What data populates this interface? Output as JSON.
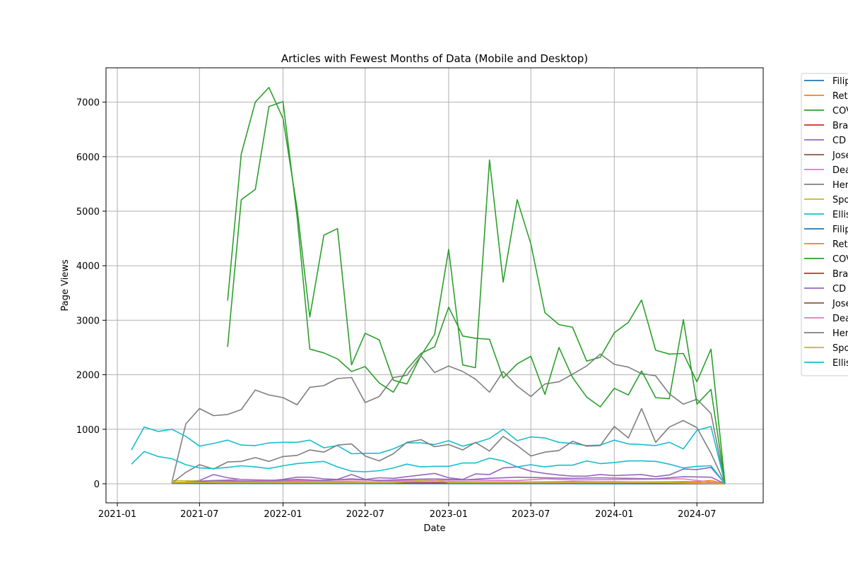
{
  "chart_data": {
    "type": "line",
    "title": "Articles with Fewest Months of Data (Mobile and Desktop)",
    "xlabel": "Date",
    "ylabel": "Page Views",
    "xlim": [
      "2020-12-07",
      "2024-11-24"
    ],
    "ylim": [
      -350,
      7630
    ],
    "x_ticks": [
      "2021-01",
      "2021-07",
      "2022-01",
      "2022-07",
      "2023-01",
      "2023-07",
      "2024-01",
      "2024-07"
    ],
    "y_ticks": [
      0,
      1000,
      2000,
      3000,
      4000,
      5000,
      6000,
      7000
    ],
    "grid": true,
    "legend_position": "outside-right",
    "series": [
      {
        "name": "Filip",
        "color": "#1f77b4",
        "x": [
          "2021-05",
          "2024-09"
        ],
        "y": [
          15,
          0
        ]
      },
      {
        "name": "Ret",
        "color": "#ff7f0e",
        "x": [
          "2021-05",
          "2021-09",
          "2022-01",
          "2022-07",
          "2023-01",
          "2023-07",
          "2024-01",
          "2024-07",
          "2024-08",
          "2024-09"
        ],
        "y": [
          25,
          30,
          40,
          30,
          30,
          25,
          30,
          40,
          60,
          0
        ]
      },
      {
        "name": "COV",
        "color": "#2ca02c",
        "x": [
          "2021-09",
          "2021-10",
          "2021-11",
          "2021-12",
          "2022-01",
          "2022-02",
          "2022-03",
          "2022-04",
          "2022-05",
          "2022-06",
          "2022-07",
          "2022-08",
          "2022-09",
          "2022-10",
          "2022-11",
          "2022-12",
          "2023-01",
          "2023-02",
          "2023-03",
          "2023-04",
          "2023-05",
          "2023-06",
          "2023-07",
          "2023-08",
          "2023-09",
          "2023-10",
          "2023-11",
          "2023-12",
          "2024-01",
          "2024-02",
          "2024-03",
          "2024-04",
          "2024-05",
          "2024-06",
          "2024-07",
          "2024-08",
          "2024-09"
        ],
        "y": [
          3360,
          6050,
          7000,
          7270,
          6700,
          5050,
          3060,
          4560,
          4680,
          2180,
          2760,
          2640,
          1900,
          1830,
          2350,
          2740,
          4300,
          2180,
          2130,
          5940,
          3700,
          5210,
          4400,
          3140,
          2920,
          2870,
          2250,
          2320,
          2770,
          2960,
          3370,
          2450,
          2380,
          2390,
          1870,
          2470,
          0
        ]
      },
      {
        "name": "Bra",
        "color": "#d62728",
        "x": [
          "2021-06",
          "2021-09",
          "2022-01",
          "2022-05",
          "2022-09",
          "2023-01",
          "2023-05",
          "2023-09",
          "2024-01",
          "2024-05",
          "2024-08"
        ],
        "y": [
          30,
          40,
          30,
          40,
          30,
          30,
          25,
          20,
          25,
          15,
          10
        ]
      },
      {
        "name": "CD",
        "color": "#9467bd",
        "x": [
          "2021-06",
          "2021-07",
          "2021-08",
          "2021-09",
          "2021-10",
          "2021-11",
          "2021-12",
          "2022-01",
          "2022-02",
          "2022-03",
          "2022-04",
          "2022-05",
          "2022-06",
          "2022-07",
          "2022-08",
          "2022-09",
          "2022-10",
          "2022-11",
          "2022-12",
          "2023-01",
          "2023-02",
          "2023-03",
          "2023-04",
          "2023-05",
          "2023-06",
          "2023-07",
          "2023-08",
          "2023-09",
          "2023-10",
          "2023-11",
          "2023-12",
          "2024-01",
          "2024-02",
          "2024-03",
          "2024-04",
          "2024-05",
          "2024-06",
          "2024-07",
          "2024-08",
          "2024-09"
        ],
        "y": [
          40,
          60,
          170,
          110,
          80,
          70,
          60,
          80,
          120,
          120,
          90,
          80,
          170,
          80,
          110,
          100,
          130,
          160,
          190,
          110,
          80,
          180,
          170,
          290,
          310,
          230,
          190,
          160,
          140,
          140,
          170,
          150,
          160,
          170,
          130,
          160,
          270,
          260,
          300,
          0
        ]
      },
      {
        "name": "Jose",
        "color": "#8c564b",
        "x": [
          "2021-06",
          "2021-10",
          "2022-02",
          "2022-06",
          "2022-10",
          "2023-02",
          "2023-06",
          "2023-10",
          "2024-02",
          "2024-06",
          "2024-09"
        ],
        "y": [
          20,
          30,
          40,
          30,
          40,
          30,
          30,
          40,
          30,
          30,
          0
        ]
      },
      {
        "name": "Dea",
        "color": "#e377c2",
        "x": [
          "2021-06",
          "2021-10",
          "2022-02",
          "2022-06",
          "2022-10",
          "2023-02",
          "2023-06",
          "2023-08",
          "2023-10",
          "2024-02",
          "2024-06",
          "2024-09"
        ],
        "y": [
          40,
          80,
          60,
          70,
          60,
          70,
          60,
          90,
          70,
          80,
          90,
          0
        ]
      },
      {
        "name": "Her",
        "color": "#7f7f7f",
        "x": [
          "2021-05",
          "2021-06",
          "2021-07",
          "2021-08",
          "2021-09",
          "2021-10",
          "2021-11",
          "2021-12",
          "2022-01",
          "2022-02",
          "2022-03",
          "2022-04",
          "2022-05",
          "2022-06",
          "2022-07",
          "2022-08",
          "2022-09",
          "2022-10",
          "2022-11",
          "2022-12",
          "2023-01",
          "2023-02",
          "2023-03",
          "2023-04",
          "2023-05",
          "2023-06",
          "2023-07",
          "2023-08",
          "2023-09",
          "2023-10",
          "2023-11",
          "2023-12",
          "2024-01",
          "2024-02",
          "2024-03",
          "2024-04",
          "2024-05",
          "2024-06",
          "2024-07",
          "2024-08",
          "2024-09"
        ],
        "y": [
          20,
          1100,
          1380,
          1250,
          1270,
          1360,
          1720,
          1630,
          1580,
          1450,
          1770,
          1800,
          1930,
          1950,
          1490,
          1600,
          1950,
          1990,
          2350,
          2040,
          2160,
          2060,
          1920,
          1680,
          2060,
          1790,
          1600,
          1830,
          1870,
          2010,
          2160,
          2380,
          2190,
          2140,
          2020,
          1980,
          1650,
          1460,
          1550,
          1290,
          0
        ]
      },
      {
        "name": "Spo",
        "color": "#bcbd22",
        "x": [
          "2021-05",
          "2021-09",
          "2022-01",
          "2022-05",
          "2022-09",
          "2023-01",
          "2023-05",
          "2023-09",
          "2024-01",
          "2024-05",
          "2024-09"
        ],
        "y": [
          60,
          40,
          30,
          40,
          30,
          20,
          30,
          30,
          30,
          30,
          0
        ]
      },
      {
        "name": "Ellis",
        "color": "#17becf",
        "x": [
          "2021-02",
          "2021-03",
          "2021-04",
          "2021-05",
          "2021-06",
          "2021-07",
          "2021-08",
          "2021-09",
          "2021-10",
          "2021-11",
          "2021-12",
          "2022-01",
          "2022-02",
          "2022-03",
          "2022-04",
          "2022-05",
          "2022-06",
          "2022-07",
          "2022-08",
          "2022-09",
          "2022-10",
          "2022-11",
          "2022-12",
          "2023-01",
          "2023-02",
          "2023-03",
          "2023-04",
          "2023-05",
          "2023-06",
          "2023-07",
          "2023-08",
          "2023-09",
          "2023-10",
          "2023-11",
          "2023-12",
          "2024-01",
          "2024-02",
          "2024-03",
          "2024-04",
          "2024-05",
          "2024-06",
          "2024-07",
          "2024-08",
          "2024-09"
        ],
        "y": [
          620,
          1040,
          960,
          1000,
          870,
          690,
          740,
          800,
          710,
          700,
          750,
          760,
          760,
          800,
          660,
          700,
          550,
          560,
          560,
          640,
          750,
          750,
          720,
          790,
          690,
          750,
          830,
          1000,
          790,
          860,
          840,
          760,
          740,
          700,
          710,
          800,
          730,
          720,
          700,
          760,
          640,
          980,
          1050,
          0
        ]
      },
      {
        "name": "Filip",
        "color": "#1f77b4",
        "x": [
          "2021-05",
          "2024-09"
        ],
        "y": [
          5,
          0
        ]
      },
      {
        "name": "Ret",
        "color": "#ff7f0e",
        "x": [
          "2021-05",
          "2021-09",
          "2022-01",
          "2022-07",
          "2023-01",
          "2023-07",
          "2024-01",
          "2024-07",
          "2024-09"
        ],
        "y": [
          15,
          20,
          25,
          20,
          20,
          15,
          20,
          25,
          0
        ]
      },
      {
        "name": "COV",
        "color": "#2ca02c",
        "x": [
          "2021-09",
          "2021-10",
          "2021-11",
          "2021-12",
          "2022-01",
          "2022-02",
          "2022-03",
          "2022-04",
          "2022-05",
          "2022-06",
          "2022-07",
          "2022-08",
          "2022-09",
          "2022-10",
          "2022-11",
          "2022-12",
          "2023-01",
          "2023-02",
          "2023-03",
          "2023-04",
          "2023-05",
          "2023-06",
          "2023-07",
          "2023-08",
          "2023-09",
          "2023-10",
          "2023-11",
          "2023-12",
          "2024-01",
          "2024-02",
          "2024-03",
          "2024-04",
          "2024-05",
          "2024-06",
          "2024-07",
          "2024-08",
          "2024-09"
        ],
        "y": [
          2510,
          5210,
          5400,
          6920,
          7010,
          4900,
          2470,
          2400,
          2290,
          2060,
          2150,
          1850,
          1680,
          2100,
          2390,
          2510,
          3240,
          2710,
          2670,
          2650,
          1940,
          2200,
          2340,
          1640,
          2500,
          1950,
          1590,
          1410,
          1750,
          1630,
          2070,
          1580,
          1560,
          3010,
          1460,
          1730,
          0
        ]
      },
      {
        "name": "Bra",
        "color": "#d62728",
        "x": [
          "2021-06",
          "2021-10",
          "2022-02",
          "2022-06",
          "2022-10",
          "2023-02",
          "2023-06",
          "2023-10",
          "2024-02",
          "2024-06",
          "2024-08"
        ],
        "y": [
          10,
          20,
          15,
          20,
          15,
          15,
          10,
          10,
          10,
          5,
          5
        ]
      },
      {
        "name": "CD",
        "color": "#9467bd",
        "x": [
          "2021-06",
          "2021-08",
          "2021-10",
          "2021-12",
          "2022-02",
          "2022-04",
          "2022-06",
          "2022-08",
          "2022-10",
          "2022-12",
          "2023-02",
          "2023-04",
          "2023-06",
          "2023-08",
          "2023-10",
          "2023-12",
          "2024-02",
          "2024-04",
          "2024-06",
          "2024-08",
          "2024-09"
        ],
        "y": [
          30,
          60,
          50,
          50,
          80,
          60,
          90,
          60,
          80,
          90,
          70,
          100,
          120,
          110,
          100,
          110,
          100,
          90,
          130,
          120,
          0
        ]
      },
      {
        "name": "Jose",
        "color": "#8c564b",
        "x": [
          "2021-06",
          "2022-01",
          "2022-07",
          "2023-01",
          "2023-07",
          "2024-01",
          "2024-09"
        ],
        "y": [
          10,
          20,
          15,
          20,
          15,
          20,
          0
        ]
      },
      {
        "name": "Dea",
        "color": "#e377c2",
        "x": [
          "2021-06",
          "2022-01",
          "2022-07",
          "2023-01",
          "2023-07",
          "2024-01",
          "2024-09"
        ],
        "y": [
          20,
          40,
          30,
          40,
          30,
          40,
          0
        ]
      },
      {
        "name": "Her",
        "color": "#7f7f7f",
        "x": [
          "2021-05",
          "2021-06",
          "2021-07",
          "2021-08",
          "2021-09",
          "2021-10",
          "2021-11",
          "2021-12",
          "2022-01",
          "2022-02",
          "2022-03",
          "2022-04",
          "2022-05",
          "2022-06",
          "2022-07",
          "2022-08",
          "2022-09",
          "2022-10",
          "2022-11",
          "2022-12",
          "2023-01",
          "2023-02",
          "2023-03",
          "2023-04",
          "2023-05",
          "2023-06",
          "2023-07",
          "2023-08",
          "2023-09",
          "2023-10",
          "2023-11",
          "2023-12",
          "2024-01",
          "2024-02",
          "2024-03",
          "2024-04",
          "2024-05",
          "2024-06",
          "2024-07",
          "2024-08",
          "2024-09"
        ],
        "y": [
          10,
          210,
          350,
          270,
          400,
          410,
          480,
          410,
          500,
          520,
          620,
          580,
          710,
          730,
          510,
          420,
          550,
          760,
          810,
          680,
          720,
          620,
          760,
          600,
          870,
          700,
          510,
          580,
          610,
          780,
          690,
          700,
          1050,
          840,
          1380,
          760,
          1040,
          1160,
          1030,
          560,
          0
        ]
      },
      {
        "name": "Spo",
        "color": "#bcbd22",
        "x": [
          "2021-05",
          "2021-09",
          "2022-01",
          "2022-05",
          "2022-09",
          "2022-12",
          "2023-01",
          "2023-05",
          "2023-09",
          "2024-01",
          "2024-05",
          "2024-09"
        ],
        "y": [
          30,
          20,
          20,
          20,
          20,
          80,
          20,
          20,
          20,
          20,
          20,
          0
        ]
      },
      {
        "name": "Ellis",
        "color": "#17becf",
        "x": [
          "2021-02",
          "2021-03",
          "2021-04",
          "2021-05",
          "2021-06",
          "2021-07",
          "2021-08",
          "2021-09",
          "2021-10",
          "2021-11",
          "2021-12",
          "2022-01",
          "2022-02",
          "2022-03",
          "2022-04",
          "2022-05",
          "2022-06",
          "2022-07",
          "2022-08",
          "2022-09",
          "2022-10",
          "2022-11",
          "2022-12",
          "2023-01",
          "2023-02",
          "2023-03",
          "2023-04",
          "2023-05",
          "2023-06",
          "2023-07",
          "2023-08",
          "2023-09",
          "2023-10",
          "2023-11",
          "2023-12",
          "2024-01",
          "2024-02",
          "2024-03",
          "2024-04",
          "2024-05",
          "2024-06",
          "2024-07",
          "2024-08",
          "2024-09"
        ],
        "y": [
          360,
          590,
          500,
          460,
          350,
          290,
          280,
          300,
          330,
          310,
          280,
          330,
          370,
          390,
          410,
          310,
          230,
          220,
          240,
          290,
          360,
          310,
          320,
          320,
          380,
          380,
          470,
          420,
          310,
          350,
          310,
          340,
          340,
          420,
          370,
          390,
          420,
          420,
          410,
          360,
          290,
          320,
          330,
          0
        ]
      }
    ]
  }
}
